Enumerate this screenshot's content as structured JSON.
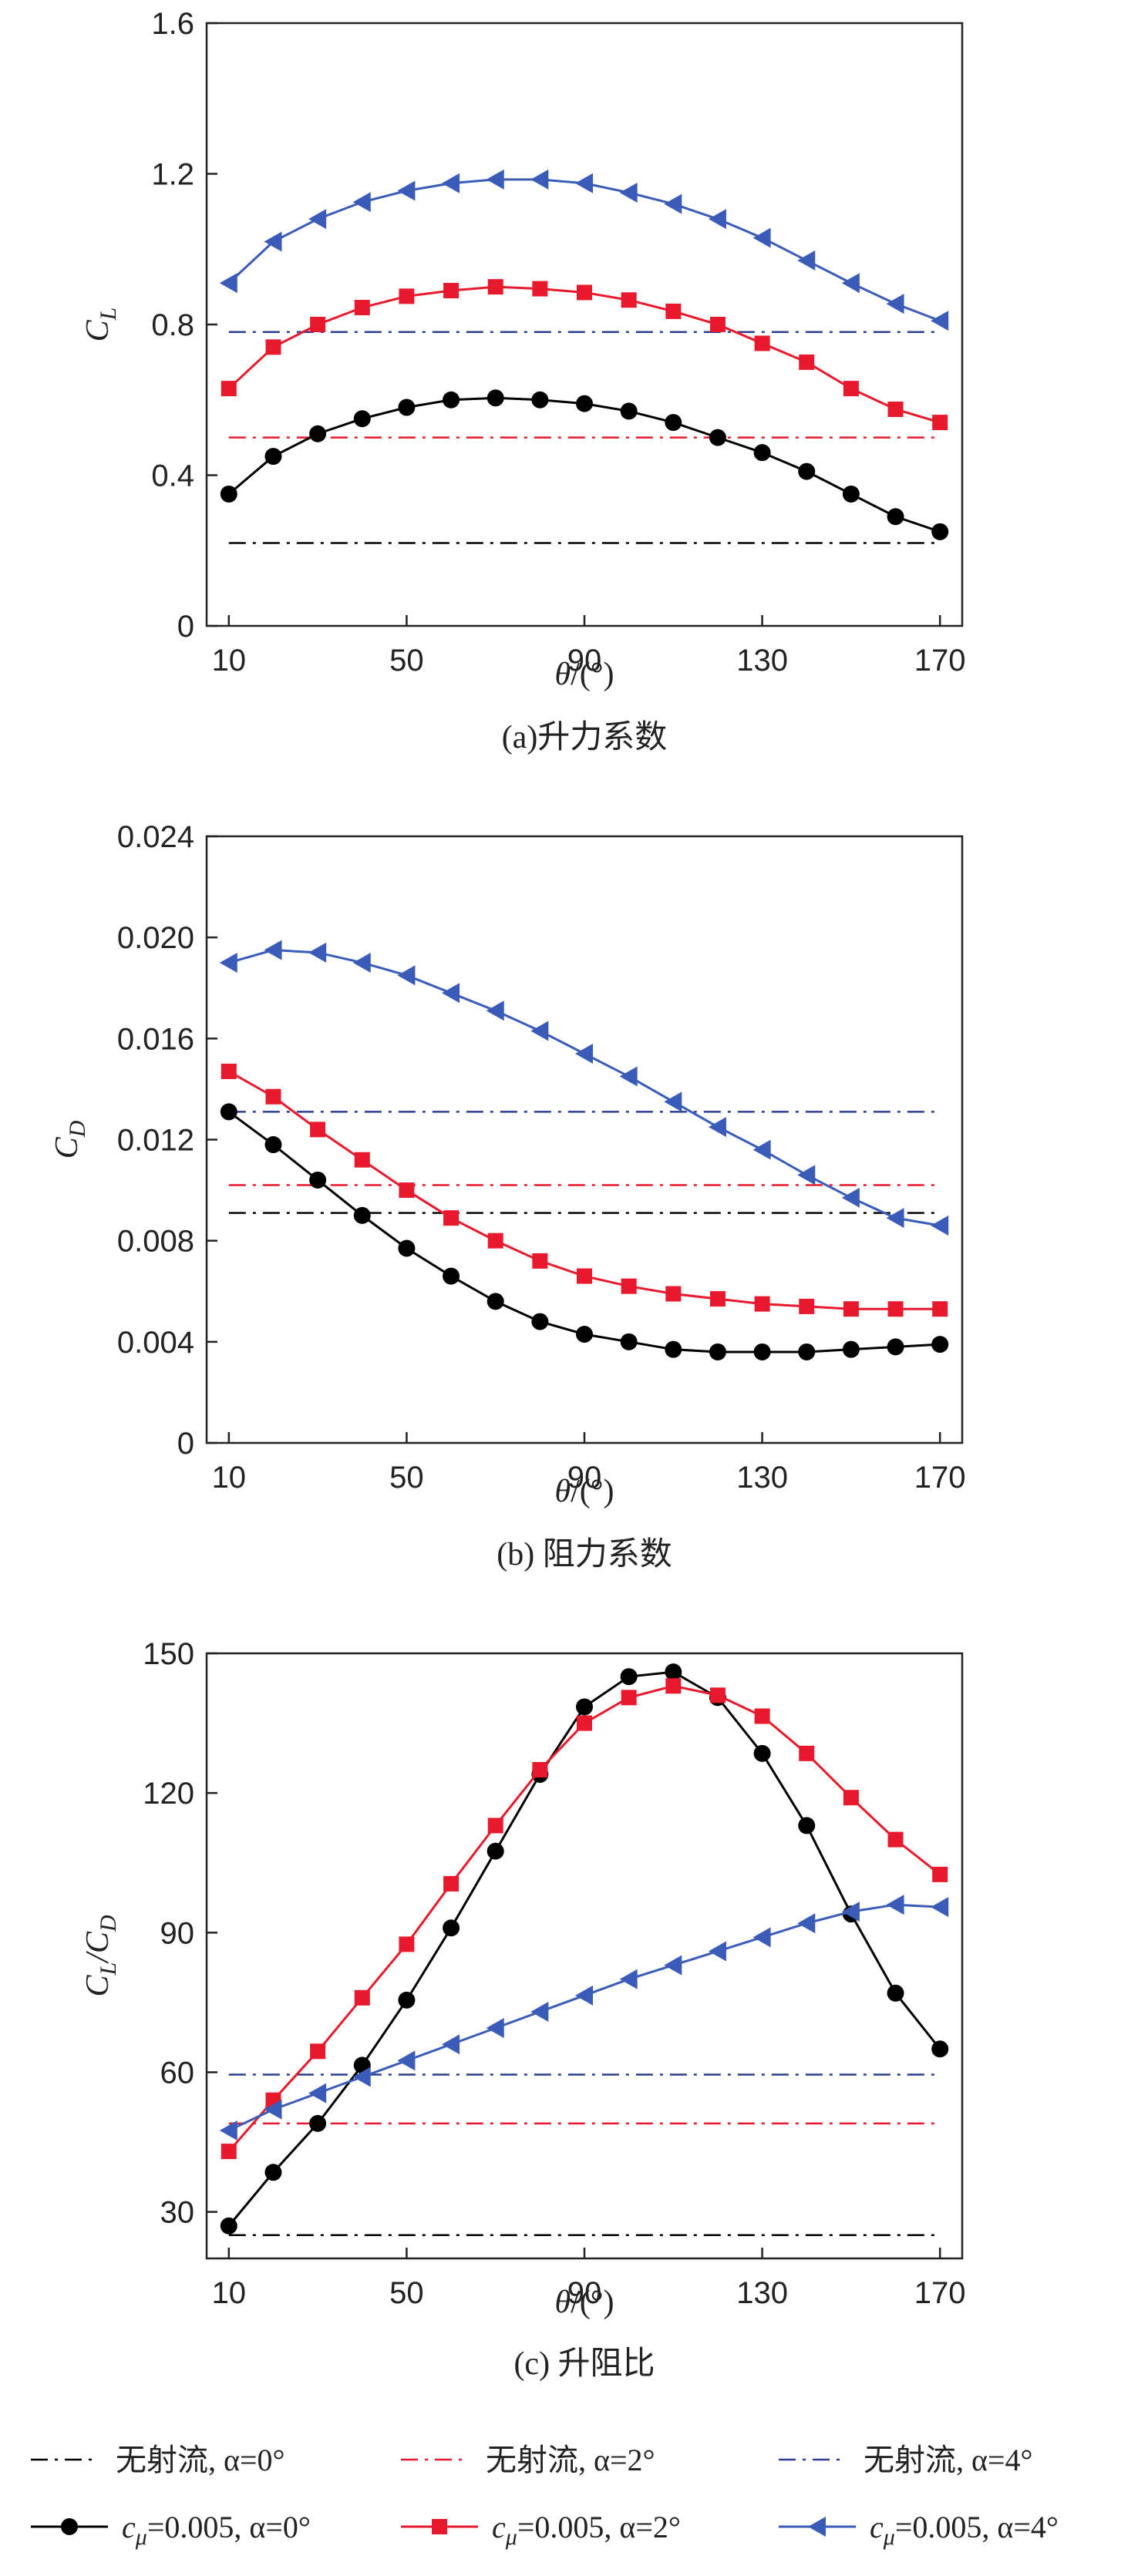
{
  "chart_data": [
    {
      "type": "line",
      "caption": "(a)升力系数",
      "ylabel_main": "C",
      "ylabel_sub": "L",
      "xlabel_main": "θ",
      "xlabel_rest": "/(°)",
      "xlim": [
        5,
        175
      ],
      "ylim": [
        0,
        1.6
      ],
      "xticks": [
        10,
        50,
        90,
        130,
        170
      ],
      "yticks": [
        0,
        0.4,
        0.8,
        1.2,
        1.6
      ],
      "ytick_labels": [
        "0",
        "0.4",
        "0.8",
        "1.2",
        "1.6"
      ],
      "x": [
        10,
        20,
        30,
        40,
        50,
        60,
        70,
        80,
        90,
        100,
        110,
        120,
        130,
        140,
        150,
        160,
        170
      ],
      "series": [
        {
          "name": "cμ=0.005, α=0°",
          "color": "#000000",
          "marker": "circle",
          "values": [
            0.35,
            0.45,
            0.51,
            0.55,
            0.58,
            0.6,
            0.605,
            0.6,
            0.59,
            0.57,
            0.54,
            0.5,
            0.46,
            0.41,
            0.35,
            0.29,
            0.25
          ]
        },
        {
          "name": "cμ=0.005, α=2°",
          "color": "#e8192c",
          "marker": "square",
          "values": [
            0.63,
            0.74,
            0.8,
            0.845,
            0.875,
            0.89,
            0.9,
            0.895,
            0.885,
            0.865,
            0.835,
            0.8,
            0.75,
            0.7,
            0.63,
            0.575,
            0.54
          ]
        },
        {
          "name": "cμ=0.005, α=4°",
          "color": "#3a5bb8",
          "marker": "triangle",
          "values": [
            0.91,
            1.02,
            1.08,
            1.125,
            1.155,
            1.175,
            1.185,
            1.185,
            1.175,
            1.15,
            1.12,
            1.08,
            1.03,
            0.97,
            0.91,
            0.855,
            0.81
          ]
        }
      ],
      "baselines": [
        {
          "name": "无射流, α=0°",
          "color": "#000000",
          "value": 0.22
        },
        {
          "name": "无射流, α=2°",
          "color": "#e8192c",
          "value": 0.5
        },
        {
          "name": "无射流, α=4°",
          "color": "#2a3f8f",
          "value": 0.78
        }
      ]
    },
    {
      "type": "line",
      "caption": "(b) 阻力系数",
      "ylabel_main": "C",
      "ylabel_sub": "D",
      "xlabel_main": "θ",
      "xlabel_rest": "/(°)",
      "xlim": [
        5,
        175
      ],
      "ylim": [
        0,
        0.024
      ],
      "xticks": [
        10,
        50,
        90,
        130,
        170
      ],
      "yticks": [
        0,
        0.004,
        0.008,
        0.012,
        0.016,
        0.02,
        0.024
      ],
      "ytick_labels": [
        "0",
        "0.004",
        "0.008",
        "0.012",
        "0.016",
        "0.020",
        "0.024"
      ],
      "x": [
        10,
        20,
        30,
        40,
        50,
        60,
        70,
        80,
        90,
        100,
        110,
        120,
        130,
        140,
        150,
        160,
        170
      ],
      "series": [
        {
          "name": "cμ=0.005, α=0°",
          "color": "#000000",
          "marker": "circle",
          "values": [
            0.0131,
            0.0118,
            0.0104,
            0.009,
            0.0077,
            0.0066,
            0.0056,
            0.0048,
            0.0043,
            0.004,
            0.0037,
            0.0036,
            0.0036,
            0.0036,
            0.0037,
            0.0038,
            0.0039
          ]
        },
        {
          "name": "cμ=0.005, α=2°",
          "color": "#e8192c",
          "marker": "square",
          "values": [
            0.0147,
            0.0137,
            0.0124,
            0.0112,
            0.01,
            0.0089,
            0.008,
            0.0072,
            0.0066,
            0.0062,
            0.0059,
            0.0057,
            0.0055,
            0.0054,
            0.0053,
            0.0053,
            0.0053
          ]
        },
        {
          "name": "cμ=0.005, α=4°",
          "color": "#3a5bb8",
          "marker": "triangle",
          "values": [
            0.019,
            0.0195,
            0.0194,
            0.019,
            0.0185,
            0.0178,
            0.0171,
            0.0163,
            0.0154,
            0.0145,
            0.0135,
            0.0125,
            0.0116,
            0.0106,
            0.0097,
            0.0089,
            0.0086
          ]
        }
      ],
      "baselines": [
        {
          "name": "无射流, α=0°",
          "color": "#000000",
          "value": 0.0091
        },
        {
          "name": "无射流, α=2°",
          "color": "#e8192c",
          "value": 0.0102
        },
        {
          "name": "无射流, α=4°",
          "color": "#2a3f8f",
          "value": 0.0131
        }
      ]
    },
    {
      "type": "line",
      "caption": "(c) 升阻比",
      "ylabel_main": "C",
      "ylabel_sub": "L",
      "ylabel_main2": "/C",
      "ylabel_sub2": "D",
      "xlabel_main": "θ",
      "xlabel_rest": "/(°)",
      "xlim": [
        5,
        175
      ],
      "ylim": [
        20,
        150
      ],
      "xticks": [
        10,
        50,
        90,
        130,
        170
      ],
      "yticks": [
        30,
        60,
        90,
        120,
        150
      ],
      "ytick_labels": [
        "30",
        "60",
        "90",
        "120",
        "150"
      ],
      "x": [
        10,
        20,
        30,
        40,
        50,
        60,
        70,
        80,
        90,
        100,
        110,
        120,
        130,
        140,
        150,
        160,
        170
      ],
      "series": [
        {
          "name": "cμ=0.005, α=0°",
          "color": "#000000",
          "marker": "circle",
          "values": [
            27,
            38.5,
            49,
            61.5,
            75.5,
            91,
            107.5,
            124,
            138.5,
            145,
            146,
            140.5,
            128.5,
            113,
            94,
            77,
            65
          ]
        },
        {
          "name": "cμ=0.005, α=2°",
          "color": "#e8192c",
          "marker": "square",
          "values": [
            43,
            54,
            64.5,
            76,
            87.5,
            100.5,
            113,
            125,
            135,
            140.5,
            143,
            141,
            136.5,
            128.5,
            119,
            110,
            102.5
          ]
        },
        {
          "name": "cμ=0.005, α=4°",
          "color": "#3a5bb8",
          "marker": "triangle",
          "values": [
            47.5,
            52,
            55.5,
            59,
            62.5,
            66,
            69.5,
            73,
            76.5,
            80,
            83,
            86,
            89,
            92,
            94.5,
            96,
            95.5
          ]
        }
      ],
      "baselines": [
        {
          "name": "无射流, α=0°",
          "color": "#000000",
          "value": 25
        },
        {
          "name": "无射流, α=2°",
          "color": "#e8192c",
          "value": 49
        },
        {
          "name": "无射流, α=4°",
          "color": "#2a3f8f",
          "value": 59.5
        }
      ]
    }
  ],
  "legend": {
    "row1": [
      {
        "text": "无射流, α=0°",
        "color": "#000000",
        "style": "dashdot"
      },
      {
        "text": "无射流, α=2°",
        "color": "#e8192c",
        "style": "dashdot"
      },
      {
        "text": "无射流, α=4°",
        "color": "#2a3f8f",
        "style": "dashdot"
      }
    ],
    "row2": [
      {
        "sym": "c",
        "sub": "μ",
        "rest": "=0.005, α=0°",
        "color": "#000000",
        "marker": "circle"
      },
      {
        "sym": "c",
        "sub": "μ",
        "rest": "=0.005,  α=2°",
        "color": "#e8192c",
        "marker": "square"
      },
      {
        "sym": "c",
        "sub": "μ",
        "rest": "=0.005, α=4°",
        "color": "#3a5bb8",
        "marker": "triangle"
      }
    ]
  }
}
